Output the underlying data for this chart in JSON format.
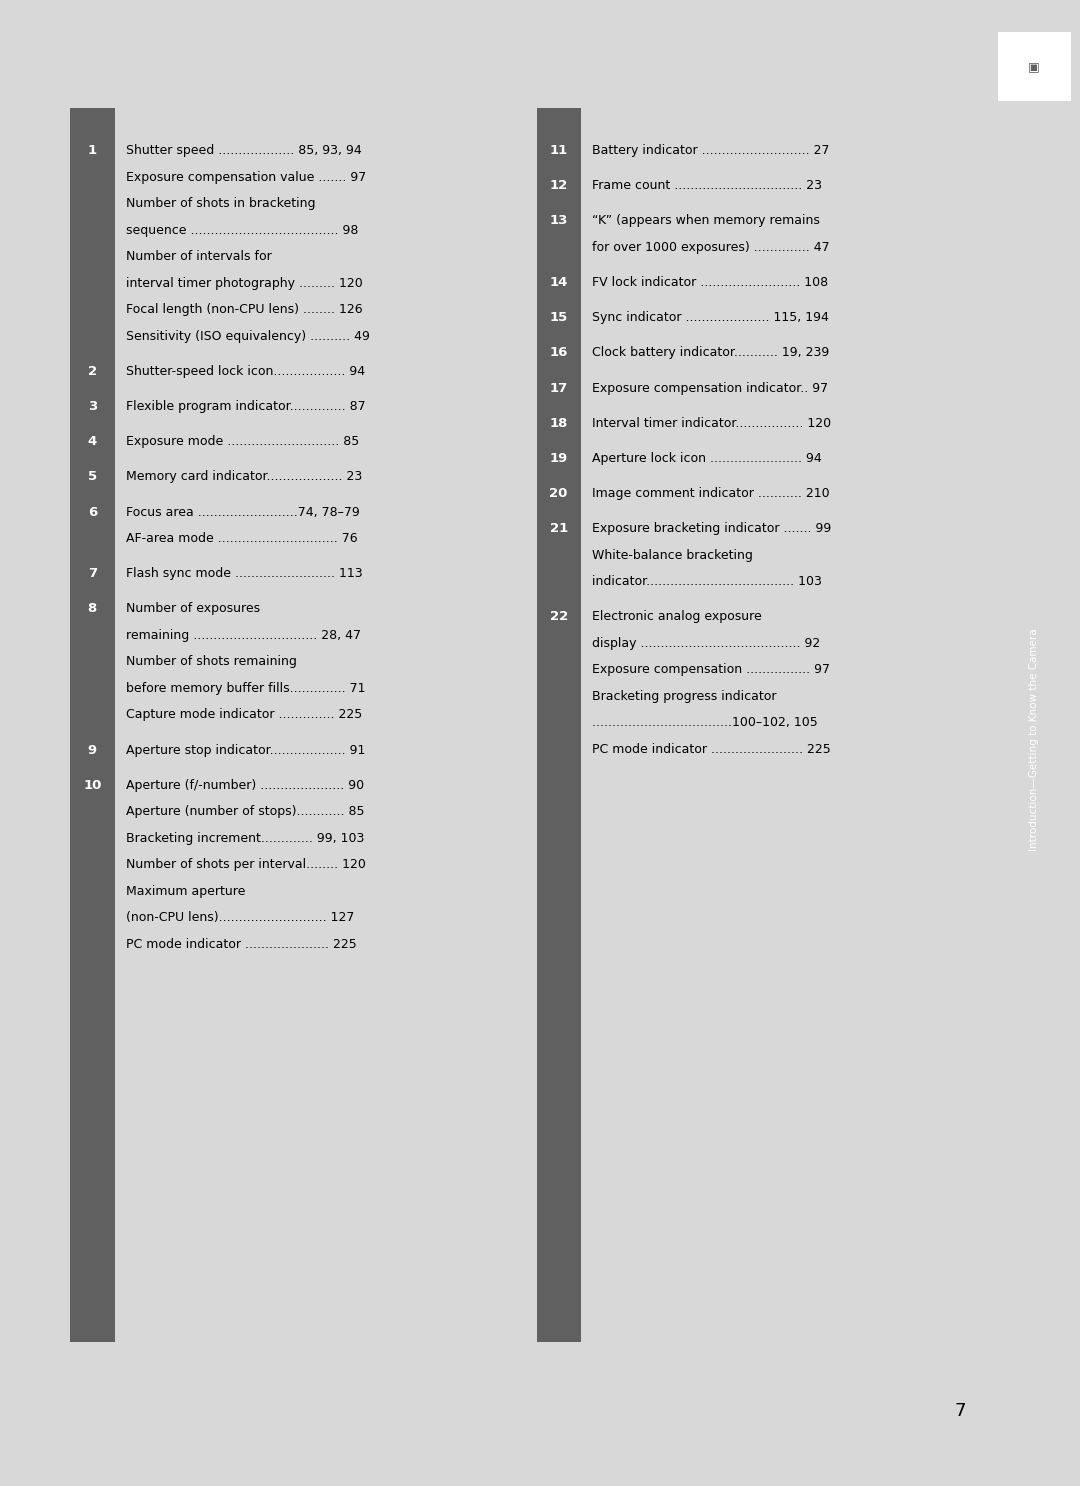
{
  "bg_color": "#d8d8d8",
  "page_bg": "#ffffff",
  "sidebar_color": "#606060",
  "sidebar_text": "Introduction—Getting to Know the Camera",
  "page_number": "7",
  "left_entries": [
    {
      "num": "1",
      "lines": [
        "Shutter speed ................... 85, 93, 94",
        "Exposure compensation value ....... 97",
        "Number of shots in bracketing",
        "sequence ..................................... 98",
        "Number of intervals for",
        "interval timer photography ......... 120",
        "Focal length (non-CPU lens) ........ 126",
        "Sensitivity (ISO equivalency) .......... 49"
      ]
    },
    {
      "num": "2",
      "lines": [
        "Shutter-speed lock icon.................. 94"
      ]
    },
    {
      "num": "3",
      "lines": [
        "Flexible program indicator.............. 87"
      ]
    },
    {
      "num": "4",
      "lines": [
        "Exposure mode ............................ 85"
      ]
    },
    {
      "num": "5",
      "lines": [
        "Memory card indicator................... 23"
      ]
    },
    {
      "num": "6",
      "lines": [
        "Focus area .........................74, 78–79",
        "AF-area mode .............................. 76"
      ]
    },
    {
      "num": "7",
      "lines": [
        "Flash sync mode ......................... 113"
      ]
    },
    {
      "num": "8",
      "lines": [
        "Number of exposures",
        "remaining ............................... 28, 47",
        "Number of shots remaining",
        "before memory buffer fills.............. 71",
        "Capture mode indicator .............. 225"
      ]
    },
    {
      "num": "9",
      "lines": [
        "Aperture stop indicator................... 91"
      ]
    },
    {
      "num": "10",
      "lines": [
        "Aperture (f/-number) ..................... 90",
        "Aperture (number of stops)............ 85",
        "Bracketing increment............. 99, 103",
        "Number of shots per interval........ 120",
        "Maximum aperture",
        "(non-CPU lens)........................... 127",
        "PC mode indicator ..................... 225"
      ]
    }
  ],
  "right_entries": [
    {
      "num": "11",
      "lines": [
        "Battery indicator ........................... 27"
      ]
    },
    {
      "num": "12",
      "lines": [
        "Frame count ................................ 23"
      ]
    },
    {
      "num": "13",
      "lines": [
        "“K” (appears when memory remains",
        "for over 1000 exposures) .............. 47"
      ]
    },
    {
      "num": "14",
      "lines": [
        "FV lock indicator ......................... 108"
      ]
    },
    {
      "num": "15",
      "lines": [
        "Sync indicator ..................... 115, 194"
      ]
    },
    {
      "num": "16",
      "lines": [
        "Clock battery indicator........... 19, 239"
      ]
    },
    {
      "num": "17",
      "lines": [
        "Exposure compensation indicator.. 97"
      ]
    },
    {
      "num": "18",
      "lines": [
        "Interval timer indicator................. 120"
      ]
    },
    {
      "num": "19",
      "lines": [
        "Aperture lock icon ....................... 94"
      ]
    },
    {
      "num": "20",
      "lines": [
        "Image comment indicator ........... 210"
      ]
    },
    {
      "num": "21",
      "lines": [
        "Exposure bracketing indicator ....... 99",
        "White-balance bracketing",
        "indicator..................................... 103"
      ]
    },
    {
      "num": "22",
      "lines": [
        "Electronic analog exposure",
        "display ........................................ 92",
        "Exposure compensation ................ 97",
        "Bracketing progress indicator",
        "...................................100–102, 105",
        "PC mode indicator ....................... 225"
      ]
    }
  ]
}
